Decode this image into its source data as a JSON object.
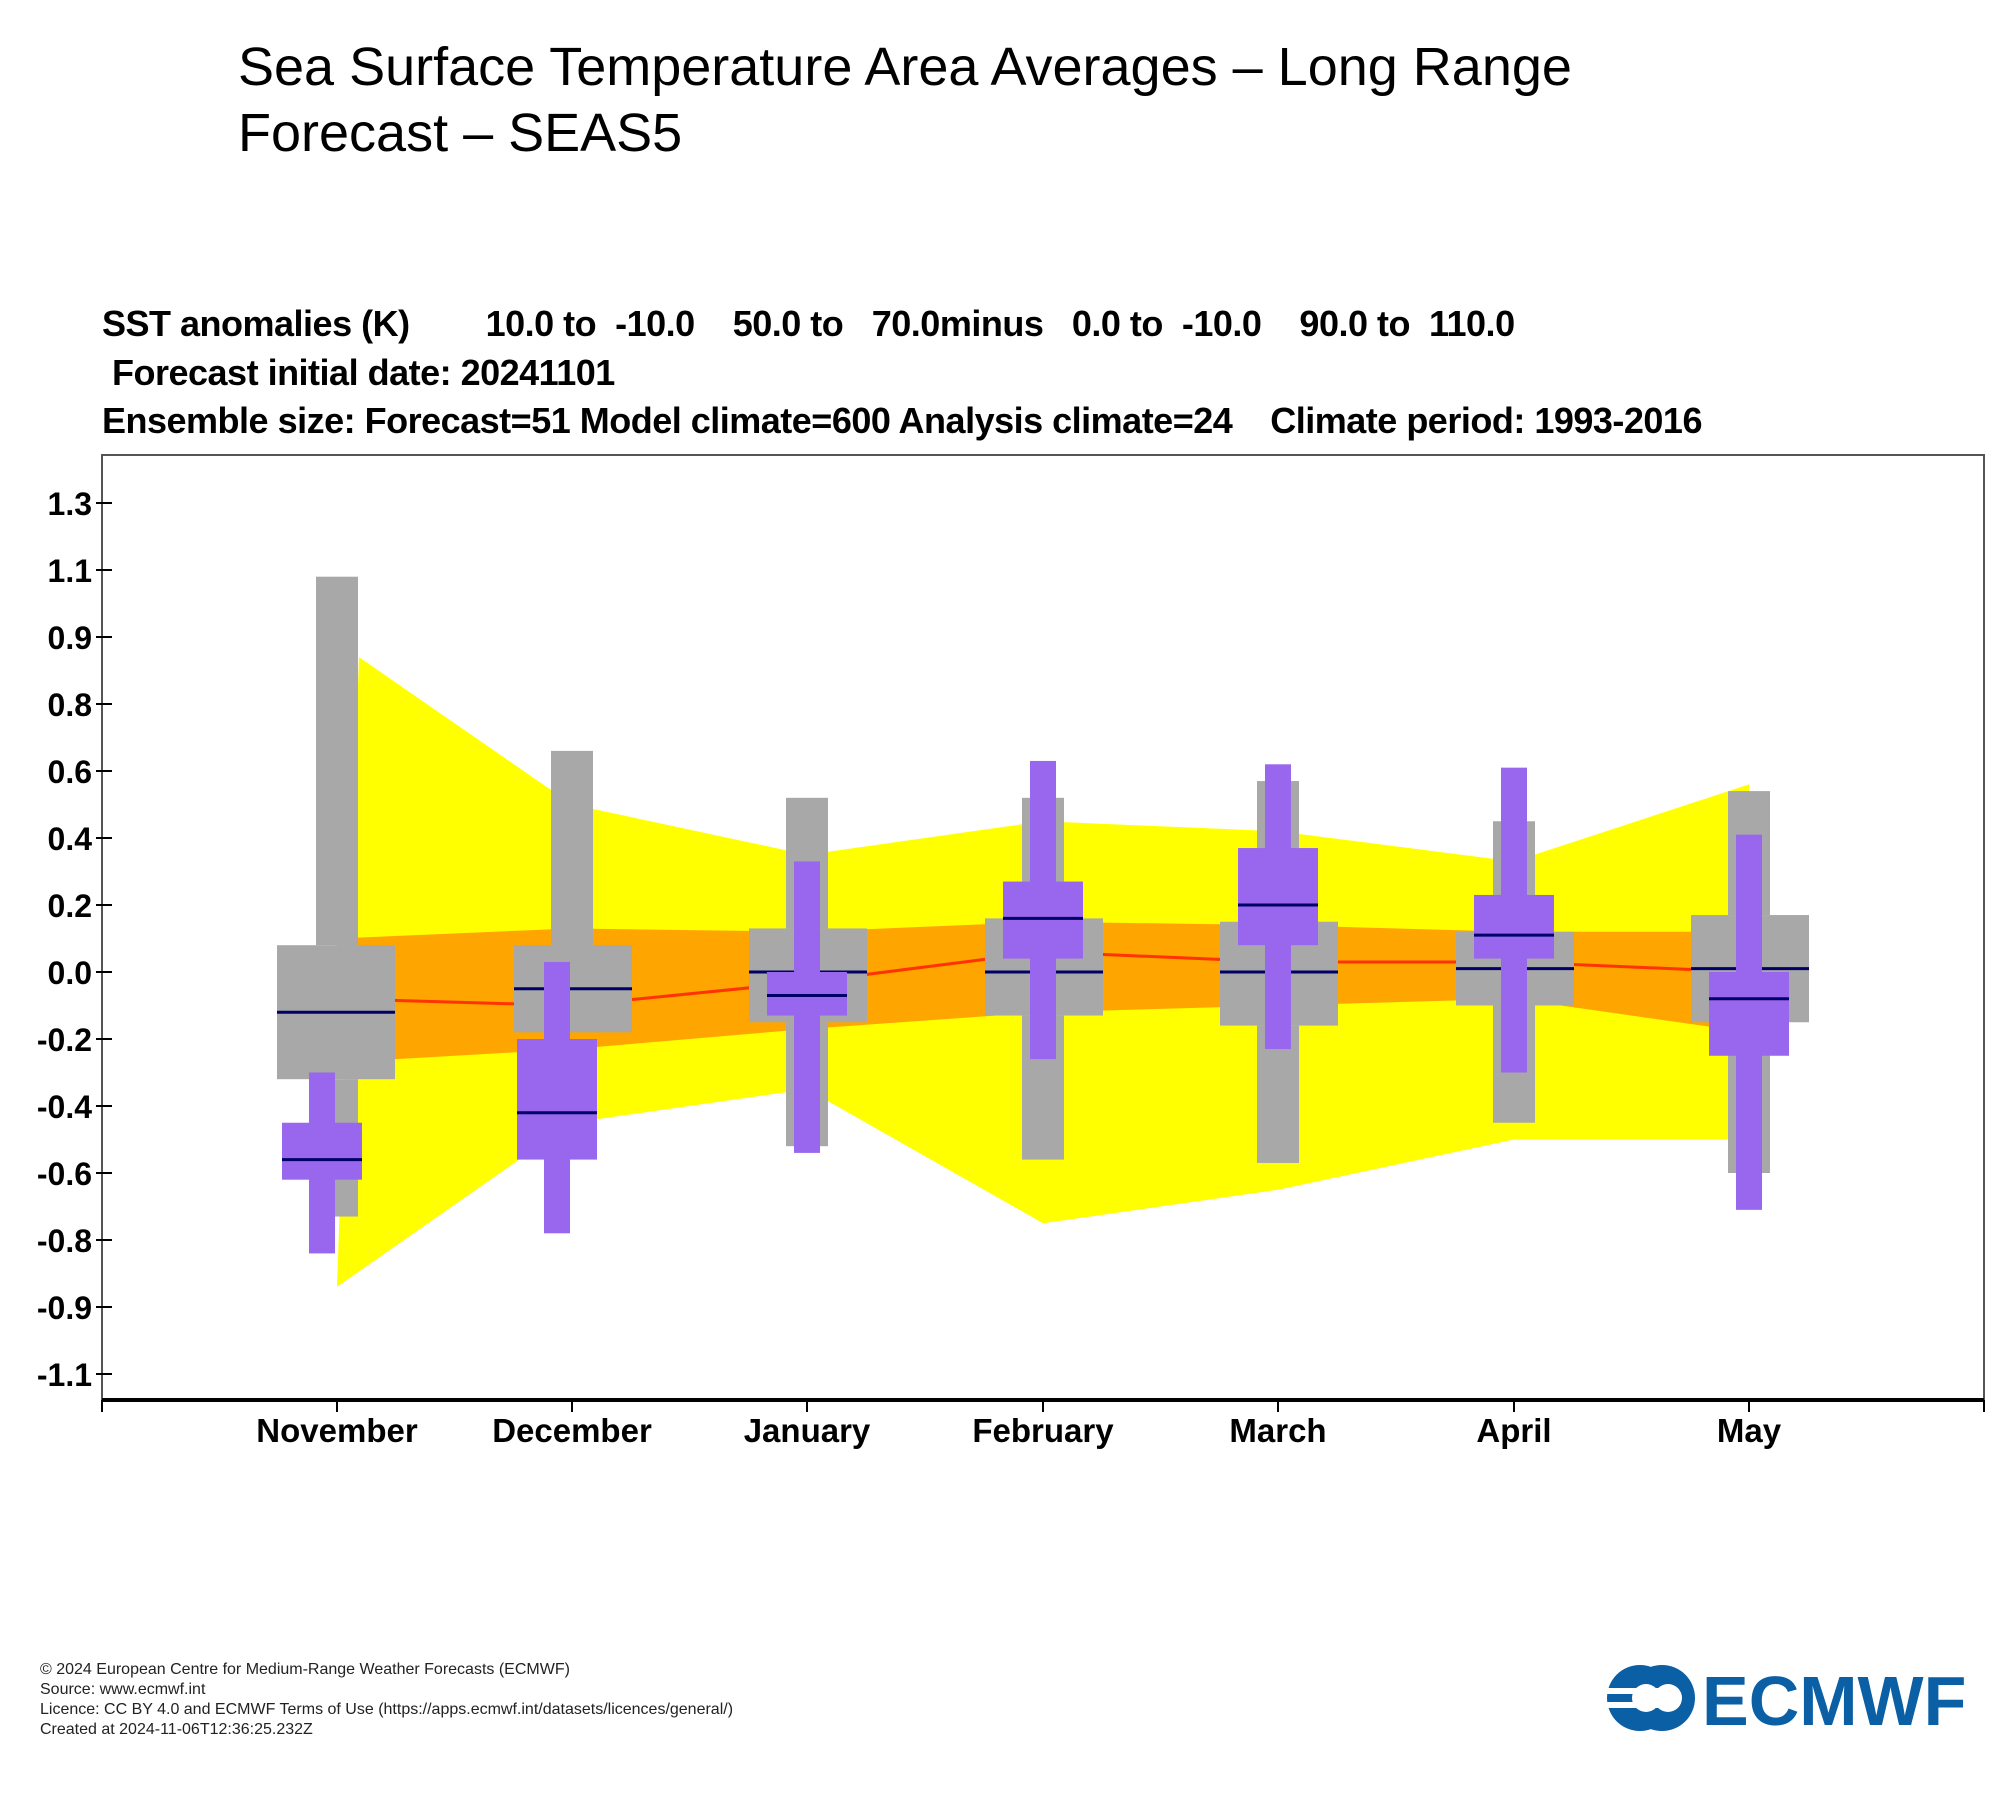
{
  "page": {
    "title": "Sea Surface Temperature Area Averages – Long Range Forecast – SEAS5"
  },
  "header": {
    "line1": "SST anomalies (K)        10.0 to  -10.0    50.0 to   70.0minus   0.0 to  -10.0    90.0 to  110.0",
    "line2": "Forecast initial date: 20241101",
    "line3": "Ensemble size: Forecast=51 Model climate=600 Analysis climate=24    Climate period: 1993-2016"
  },
  "footer": {
    "copyright": "© 2024 European Centre for Medium-Range Weather Forecasts (ECMWF)",
    "source": "Source: www.ecmwf.int",
    "licence": "Licence: CC BY 4.0 and ECMWF Terms of Use (https://apps.ecmwf.int/datasets/licences/general/)",
    "created": "Created at 2024-11-06T12:36:25.232Z",
    "logo_text": "ECMWF"
  },
  "colors": {
    "yellow": "#ffff00",
    "orange": "#ffa500",
    "red_line": "#ff3300",
    "gray": "#a8a8a8",
    "purple": "#9966ee",
    "median": "#000066",
    "logo_blue": "#0b5fa5"
  },
  "chart_data": {
    "type": "box",
    "ylabel": "",
    "xlabel": "",
    "categories": [
      "November",
      "December",
      "January",
      "February",
      "March",
      "April",
      "May"
    ],
    "y_ticks": [
      1.3,
      1.1,
      0.9,
      0.8,
      0.6,
      0.4,
      0.2,
      0.0,
      -0.2,
      -0.4,
      -0.6,
      -0.8,
      -0.9,
      -1.1
    ],
    "y_tick_labels": [
      "1.3",
      "1.1",
      "0.9",
      "0.8",
      "0.6",
      "0.4",
      "0.2",
      "0.0",
      "-0.2",
      "-0.4",
      "-0.6",
      "-0.8",
      "-0.9",
      "-1.1"
    ],
    "climate_outer_band": {
      "upper": [
        0.87,
        0.5,
        0.35,
        0.45,
        0.42,
        0.33,
        0.56
      ],
      "lower": [
        -0.87,
        -0.45,
        -0.35,
        -0.75,
        -0.65,
        -0.5,
        -0.5
      ]
    },
    "climate_inner_band": {
      "upper": [
        0.1,
        0.13,
        0.12,
        0.15,
        0.14,
        0.12,
        0.12
      ],
      "lower": [
        -0.27,
        -0.23,
        -0.17,
        -0.12,
        -0.1,
        -0.08,
        -0.18
      ]
    },
    "climate_median_line": [
      -0.08,
      -0.1,
      -0.03,
      0.06,
      0.03,
      0.03,
      0.0
    ],
    "model_climate": {
      "whisker_high": [
        1.08,
        0.66,
        0.52,
        0.52,
        0.57,
        0.45,
        0.54
      ],
      "q75": [
        0.08,
        0.08,
        0.13,
        0.16,
        0.15,
        0.12,
        0.17
      ],
      "median": [
        -0.12,
        -0.05,
        0.0,
        0.0,
        0.0,
        0.01,
        0.01
      ],
      "q25": [
        -0.32,
        -0.18,
        -0.15,
        -0.13,
        -0.16,
        -0.1,
        -0.15
      ],
      "whisker_low": [
        -0.73,
        -0.18,
        -0.52,
        -0.56,
        -0.57,
        -0.45,
        -0.6
      ]
    },
    "forecast": {
      "whisker_high": [
        -0.3,
        0.03,
        0.33,
        0.63,
        0.62,
        0.61,
        0.41
      ],
      "q75": [
        -0.45,
        -0.2,
        0.0,
        0.27,
        0.37,
        0.23,
        0.0
      ],
      "median": [
        -0.56,
        -0.42,
        -0.07,
        0.16,
        0.2,
        0.11,
        -0.08
      ],
      "q25": [
        -0.62,
        -0.56,
        -0.13,
        0.04,
        0.08,
        0.04,
        -0.25
      ],
      "whisker_low": [
        -0.82,
        -0.78,
        -0.54,
        -0.26,
        -0.23,
        -0.3,
        -0.71
      ]
    }
  }
}
